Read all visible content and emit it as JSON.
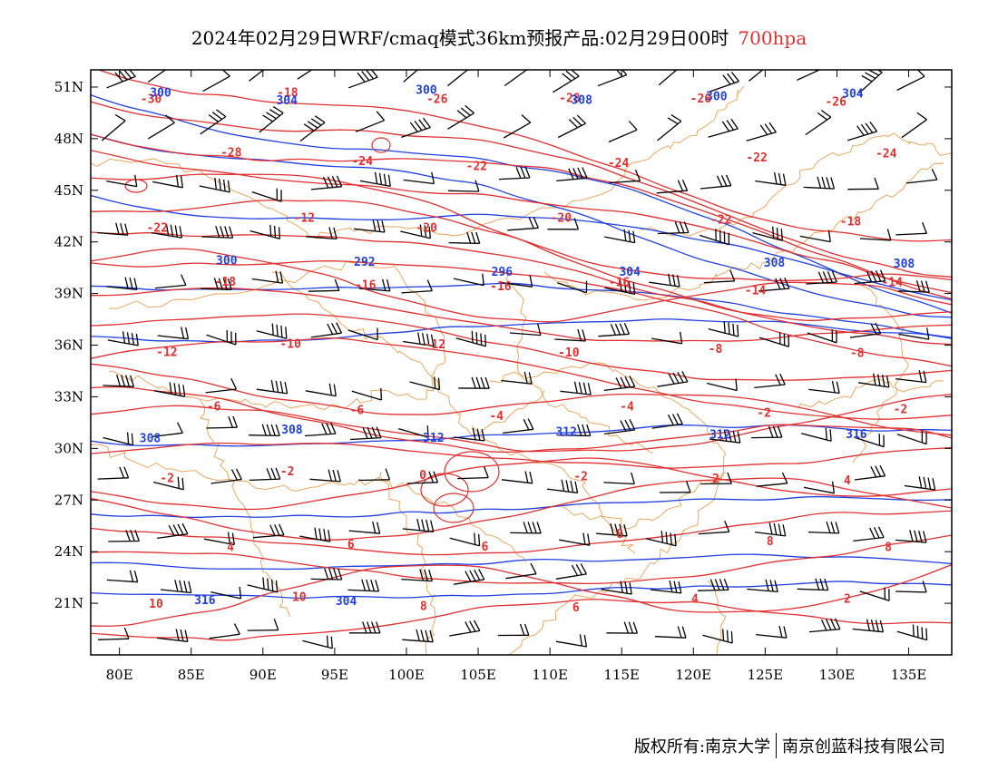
{
  "title": {
    "main": "2024年02月29日WRF/cmaq模式36km预报产品:02月29日00时",
    "level": "700hpa"
  },
  "colors": {
    "temperature": "#e03030",
    "geopotential": "#2040e0",
    "boundary": "#e8a050",
    "wind": "#000000"
  },
  "axes": {
    "x_ticks": [
      "80E",
      "85E",
      "90E",
      "95E",
      "100E",
      "105E",
      "110E",
      "115E",
      "120E",
      "125E",
      "130E",
      "135E"
    ],
    "y_ticks": [
      "51N",
      "48N",
      "45N",
      "42N",
      "39N",
      "36N",
      "33N",
      "30N",
      "27N",
      "24N",
      "21N"
    ],
    "lon_range": [
      78,
      138
    ],
    "lat_range": [
      18,
      52
    ]
  },
  "temperature_labels": [
    "-30",
    "-18",
    "-26",
    "-28",
    "-26",
    "-26",
    "-28",
    "-24",
    "-22",
    "-24",
    "-22",
    "-24",
    "-22",
    "-12",
    "-20",
    "-20",
    "-22",
    "-18",
    "-18",
    "-16",
    "-16",
    "-16",
    "-14",
    "-14",
    "-12",
    "-10",
    "-12",
    "-10",
    "-8",
    "-8",
    "-6",
    "-6",
    "-4",
    "-4",
    "-2",
    "-2",
    "-2",
    "-2",
    "0",
    "-2",
    "2",
    "4",
    "4",
    "6",
    "6",
    "8",
    "8",
    "8",
    "10",
    "10",
    "8",
    "6",
    "4",
    "2"
  ],
  "geopotential_labels": [
    "300",
    "304",
    "300",
    "308",
    "300",
    "304",
    "300",
    "292",
    "296",
    "304",
    "308",
    "308",
    "308",
    "308",
    "312",
    "312",
    "312",
    "316",
    "316",
    "304"
  ],
  "credits": {
    "left": "版权所有:南京大学",
    "right": "南京创蓝科技有限公司"
  }
}
